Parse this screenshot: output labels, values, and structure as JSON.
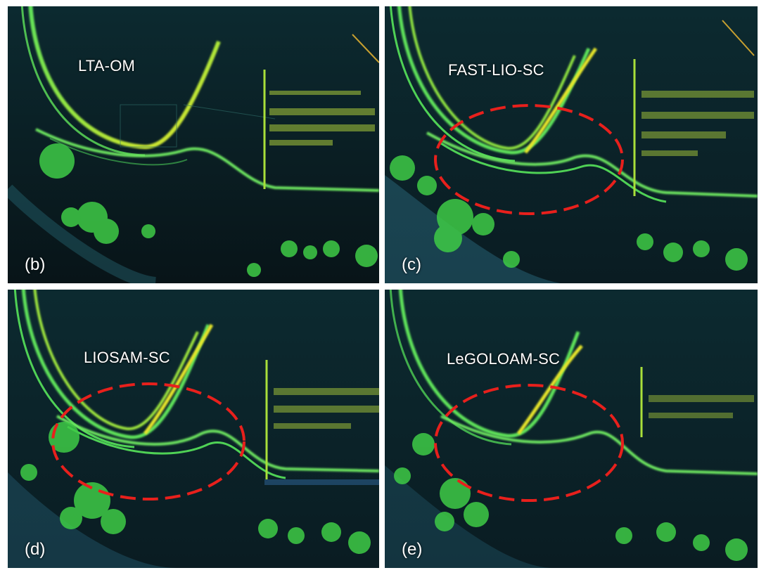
{
  "panels": [
    {
      "id": "b",
      "label": "(b)",
      "method": "LTA-OM",
      "drift_highlighted": false
    },
    {
      "id": "c",
      "label": "(c)",
      "method": "FAST-LIO-SC",
      "drift_highlighted": true
    },
    {
      "id": "d",
      "label": "(d)",
      "method": "LIOSAM-SC",
      "drift_highlighted": true
    },
    {
      "id": "e",
      "label": "(e)",
      "method": "LeGOLOAM-SC",
      "drift_highlighted": true
    }
  ],
  "colors": {
    "background": "#0a1c22",
    "road_green": "#5fe35a",
    "road_yellow": "#e6e52a",
    "trees": "#3ecb46",
    "highlight_ellipse": "#e8201c",
    "label_text": "#ffffff"
  }
}
